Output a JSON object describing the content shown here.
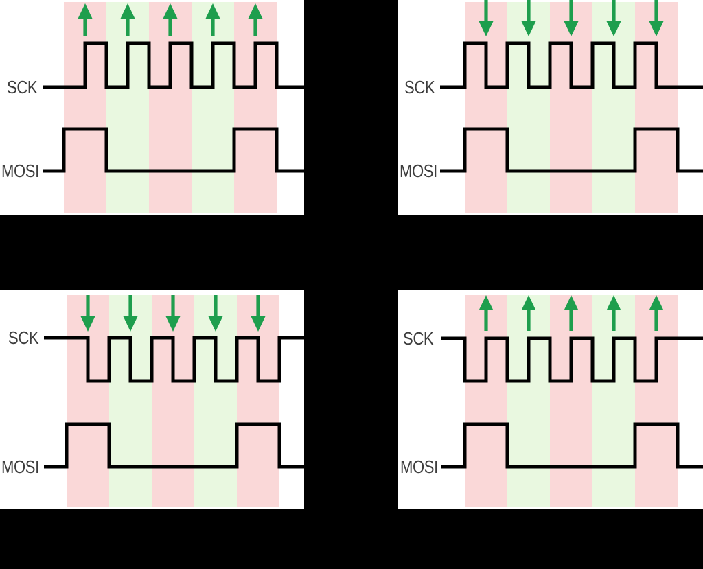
{
  "figure": {
    "background_color": "#000000",
    "panel_color": "#ffffff",
    "wave_color": "#000000",
    "label_color": "#3d3d3d",
    "arrow_color": "#1e9e4d",
    "band_colors": {
      "pink": "#fad8d8",
      "green": "#e9f8e0"
    },
    "band_pattern": [
      "pink",
      "green",
      "pink",
      "green",
      "pink"
    ],
    "bit_cells": 5,
    "mosi_bits": [
      1,
      0,
      0,
      0,
      1
    ],
    "panels": [
      {
        "id": "top-left",
        "sck_label": "SCK",
        "mosi_label": "MOSI",
        "clock_idle": "low",
        "toggle_phase": "mid",
        "sample_edge": "rising",
        "arrow_direction": "up"
      },
      {
        "id": "top-right",
        "sck_label": "SCK",
        "mosi_label": "MOSI",
        "clock_idle": "low",
        "toggle_phase": "start",
        "sample_edge": "falling",
        "arrow_direction": "down"
      },
      {
        "id": "bottom-left",
        "sck_label": "SCK",
        "mosi_label": "MOSI",
        "clock_idle": "high",
        "toggle_phase": "mid",
        "sample_edge": "falling",
        "arrow_direction": "down"
      },
      {
        "id": "bottom-right",
        "sck_label": "SCK",
        "mosi_label": "MOSI",
        "clock_idle": "high",
        "toggle_phase": "start",
        "sample_edge": "rising",
        "arrow_direction": "up"
      }
    ]
  }
}
